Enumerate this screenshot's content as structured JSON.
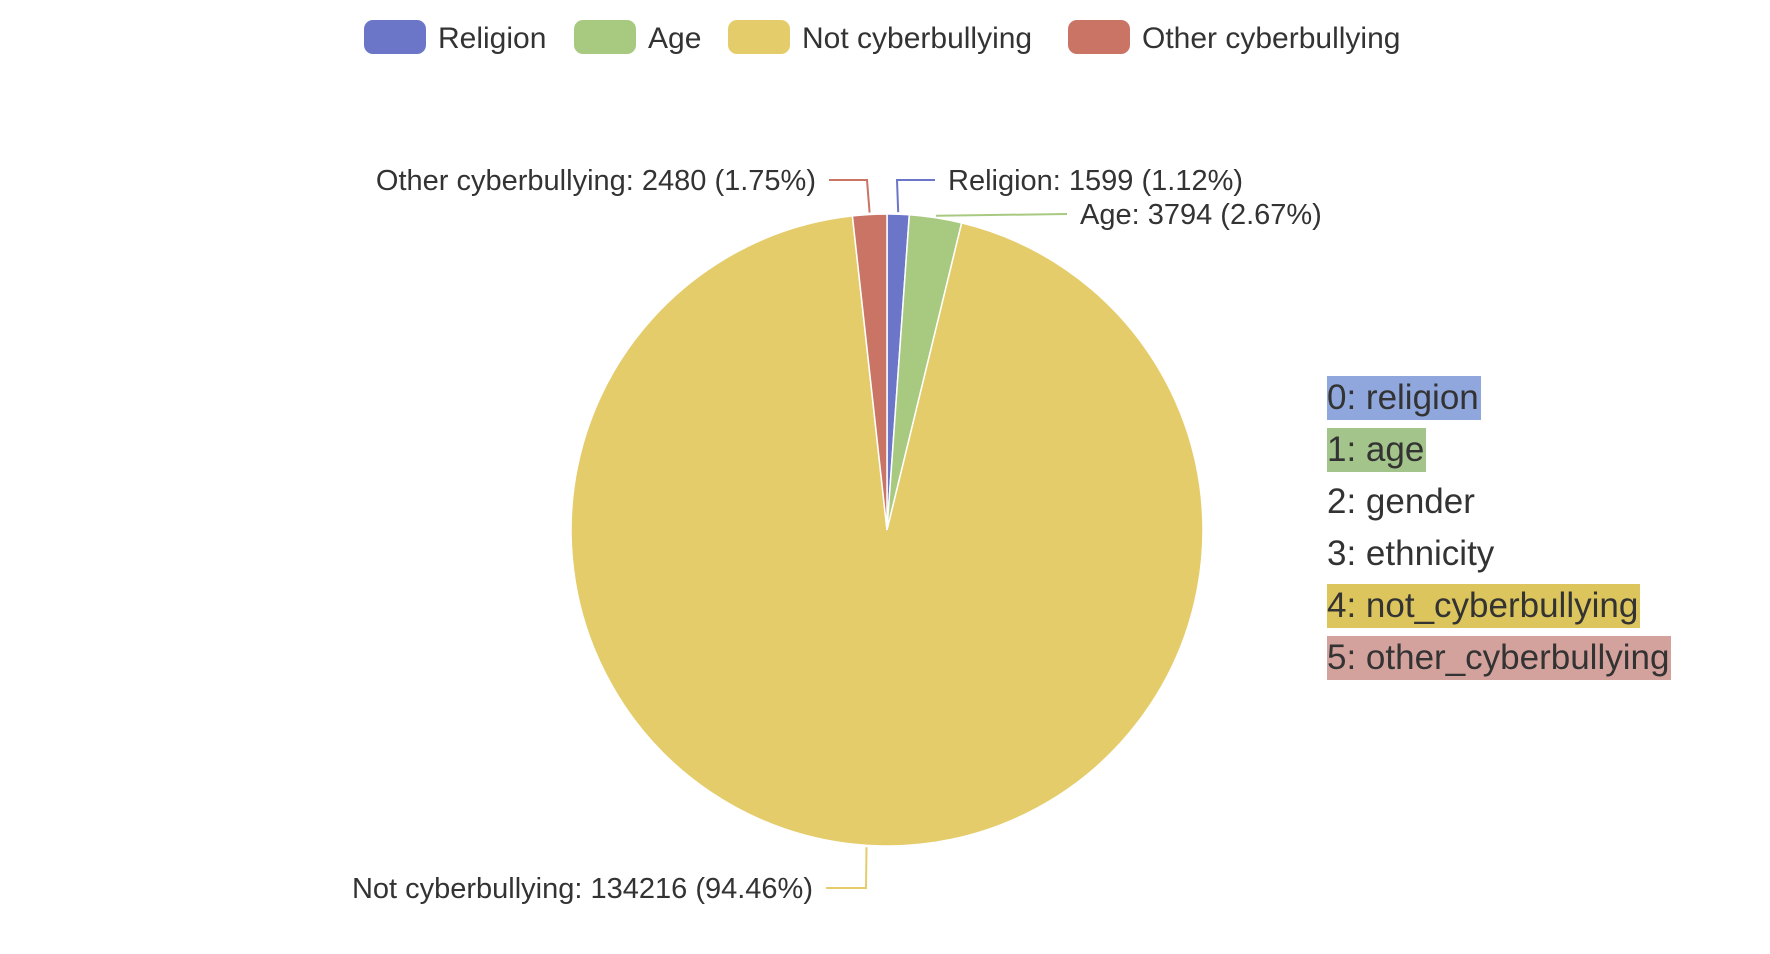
{
  "chart_data": {
    "type": "pie",
    "categories": [
      "Religion",
      "Age",
      "Not cyberbullying",
      "Other cyberbullying"
    ],
    "values": [
      1599,
      3794,
      134216,
      2480
    ],
    "percentages": [
      "1.12%",
      "2.67%",
      "94.46%",
      "1.75%"
    ],
    "colors": [
      "#6b76c8",
      "#a8ca80",
      "#e5cc6b",
      "#c97465"
    ],
    "legend": {
      "placement": "top-center",
      "items": [
        "Religion",
        "Age",
        "Not cyberbullying",
        "Other cyberbullying"
      ]
    },
    "data_labels": [
      "Religion: 1599 (1.12%)",
      "Age: 3794 (2.67%)",
      "Not cyberbullying: 134216 (94.46%)",
      "Other cyberbullying: 2480 (1.75%)"
    ],
    "start_angle_deg": 90,
    "direction": "clockwise"
  },
  "class_key": {
    "items": [
      {
        "label": "0: religion",
        "highlight": "#8fa7dc"
      },
      {
        "label": "1: age",
        "highlight": "#a3c48a"
      },
      {
        "label": "2: gender",
        "highlight": ""
      },
      {
        "label": "3: ethnicity",
        "highlight": ""
      },
      {
        "label": "4: not_cyberbullying",
        "highlight": "#dcc55c"
      },
      {
        "label": "5: other_cyberbullying",
        "highlight": "#d4a29c"
      }
    ]
  }
}
